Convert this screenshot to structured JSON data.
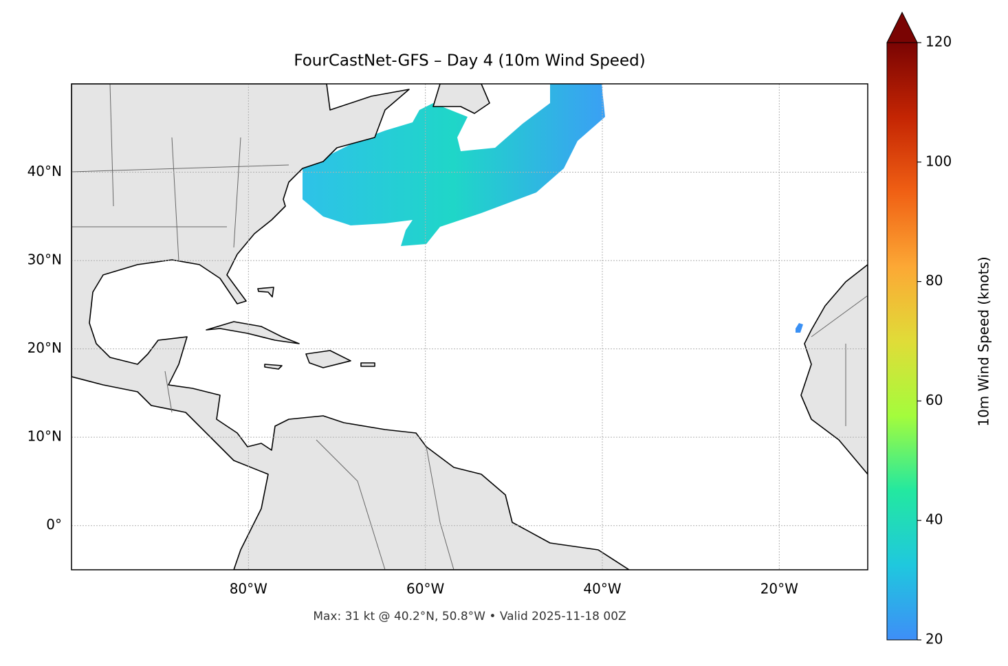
{
  "chart_data": {
    "type": "map",
    "title": "FourCastNet-GFS – Day 4 (10m Wind Speed)",
    "annotation": "Max: 31 kt @ 40.2°N, 50.8°W • Valid 2025-11-18 00Z",
    "xlim": [
      -100,
      -10
    ],
    "ylim": [
      -5,
      50
    ],
    "xticks": [
      {
        "value": -80,
        "label": "80°W"
      },
      {
        "value": -60,
        "label": "60°W"
      },
      {
        "value": -40,
        "label": "40°W"
      },
      {
        "value": -20,
        "label": "20°W"
      }
    ],
    "yticks": [
      {
        "value": 0,
        "label": "0°"
      },
      {
        "value": 10,
        "label": "10°N"
      },
      {
        "value": 20,
        "label": "20°N"
      },
      {
        "value": 30,
        "label": "30°N"
      },
      {
        "value": 40,
        "label": "40°N"
      }
    ],
    "grid": true,
    "colorbar": {
      "label": "10m Wind Speed (knots)",
      "lim": [
        20,
        120
      ],
      "ticks": [
        20,
        40,
        60,
        80,
        100,
        120
      ],
      "extend": "max",
      "colors": [
        "#3e8ef7",
        "#1fc8de",
        "#23e8a0",
        "#a4fc3c",
        "#e0dc38",
        "#fca835",
        "#f06014",
        "#c42503",
        "#7a0403"
      ]
    }
  }
}
